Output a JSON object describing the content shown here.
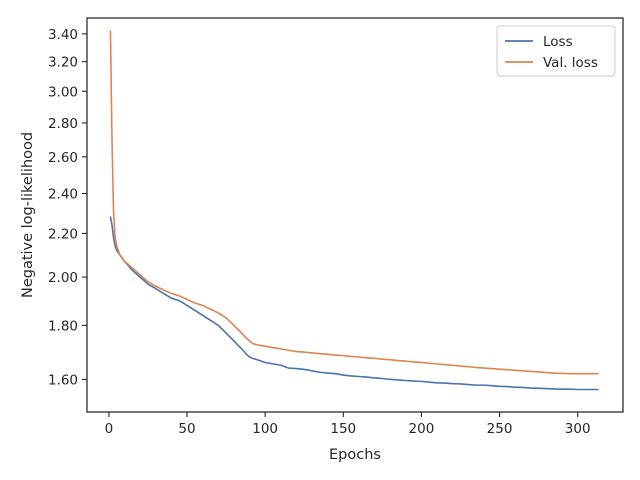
{
  "chart_data": {
    "type": "line",
    "xlabel": "Epochs",
    "ylabel": "Negative log-likelihood",
    "xlim": [
      -14,
      329
    ],
    "ylim": [
      1.49,
      3.52
    ],
    "y_scale": "log",
    "grid": false,
    "legend_position": "top-right",
    "x_ticks": [
      0,
      50,
      100,
      150,
      200,
      250,
      300
    ],
    "x_tick_labels": [
      "0",
      "50",
      "100",
      "150",
      "200",
      "250",
      "300"
    ],
    "y_ticks": [
      1.6,
      1.8,
      2.0,
      2.2,
      2.4,
      2.6,
      2.8,
      3.0,
      3.2,
      3.4
    ],
    "y_tick_labels": [
      "1.60",
      "1.80",
      "2.00",
      "2.20",
      "2.40",
      "2.60",
      "2.80",
      "3.00",
      "3.20",
      "3.40"
    ],
    "series": [
      {
        "name": "Loss",
        "color": "#4c72b0",
        "x": [
          1,
          2,
          3,
          4,
          5,
          7,
          10,
          15,
          20,
          25,
          30,
          35,
          40,
          45,
          50,
          55,
          60,
          65,
          70,
          75,
          80,
          85,
          88,
          90,
          92,
          95,
          100,
          105,
          110,
          115,
          120,
          125,
          130,
          135,
          140,
          145,
          150,
          155,
          160,
          165,
          170,
          175,
          180,
          185,
          190,
          195,
          200,
          205,
          210,
          215,
          220,
          225,
          230,
          235,
          240,
          245,
          250,
          255,
          260,
          265,
          270,
          275,
          280,
          285,
          290,
          295,
          300,
          305,
          310,
          313
        ],
        "y": [
          2.28,
          2.24,
          2.18,
          2.14,
          2.12,
          2.1,
          2.07,
          2.03,
          2.0,
          1.97,
          1.95,
          1.93,
          1.91,
          1.9,
          1.88,
          1.86,
          1.84,
          1.82,
          1.8,
          1.77,
          1.74,
          1.71,
          1.69,
          1.68,
          1.675,
          1.67,
          1.66,
          1.655,
          1.65,
          1.64,
          1.638,
          1.635,
          1.63,
          1.625,
          1.622,
          1.62,
          1.615,
          1.612,
          1.61,
          1.608,
          1.605,
          1.603,
          1.6,
          1.598,
          1.596,
          1.594,
          1.593,
          1.59,
          1.588,
          1.587,
          1.585,
          1.584,
          1.582,
          1.58,
          1.58,
          1.578,
          1.576,
          1.575,
          1.573,
          1.572,
          1.57,
          1.569,
          1.568,
          1.567,
          1.566,
          1.566,
          1.565,
          1.565,
          1.565,
          1.565
        ]
      },
      {
        "name": "Val. loss",
        "color": "#dd8452",
        "x": [
          1,
          2,
          3,
          4,
          5,
          7,
          10,
          15,
          20,
          25,
          30,
          35,
          40,
          45,
          50,
          55,
          60,
          65,
          70,
          75,
          80,
          85,
          88,
          90,
          92,
          95,
          100,
          105,
          110,
          115,
          120,
          125,
          130,
          135,
          140,
          145,
          150,
          155,
          160,
          165,
          170,
          175,
          180,
          185,
          190,
          195,
          200,
          205,
          210,
          215,
          220,
          225,
          230,
          235,
          240,
          245,
          250,
          255,
          260,
          265,
          270,
          275,
          280,
          285,
          290,
          295,
          300,
          305,
          310,
          313
        ],
        "y": [
          3.42,
          2.7,
          2.3,
          2.18,
          2.14,
          2.1,
          2.07,
          2.04,
          2.01,
          1.98,
          1.96,
          1.945,
          1.93,
          1.92,
          1.905,
          1.89,
          1.88,
          1.865,
          1.85,
          1.83,
          1.8,
          1.77,
          1.75,
          1.74,
          1.73,
          1.725,
          1.72,
          1.715,
          1.71,
          1.705,
          1.7,
          1.698,
          1.695,
          1.692,
          1.69,
          1.687,
          1.685,
          1.682,
          1.68,
          1.677,
          1.675,
          1.672,
          1.67,
          1.667,
          1.665,
          1.662,
          1.66,
          1.657,
          1.655,
          1.652,
          1.65,
          1.647,
          1.645,
          1.642,
          1.64,
          1.638,
          1.636,
          1.634,
          1.632,
          1.63,
          1.628,
          1.626,
          1.624,
          1.622,
          1.621,
          1.62,
          1.62,
          1.62,
          1.62,
          1.62
        ]
      }
    ]
  }
}
